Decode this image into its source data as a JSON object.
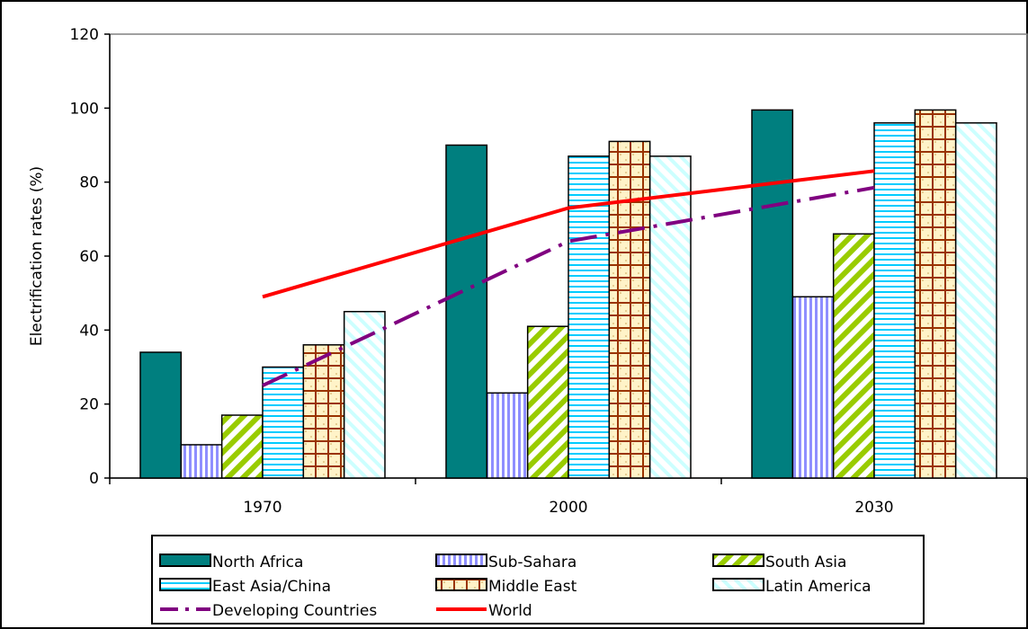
{
  "chart_data": {
    "type": "bar",
    "title": "",
    "xlabel": "",
    "ylabel": "Electrification rates (%)",
    "categories": [
      "1970",
      "2000",
      "2030"
    ],
    "ylim": [
      0,
      120
    ],
    "yticks": [
      0,
      20,
      40,
      60,
      80,
      100,
      120
    ],
    "grid": false,
    "legend_position": "bottom",
    "series": [
      {
        "name": "North Africa",
        "kind": "bar",
        "values": [
          34,
          90,
          99.5
        ],
        "color": "#007f7f",
        "pattern": "solid"
      },
      {
        "name": "Sub-Sahara",
        "kind": "bar",
        "values": [
          9,
          23,
          49
        ],
        "color": "#8f8fff",
        "pattern": "vertical"
      },
      {
        "name": "South Asia",
        "kind": "bar",
        "values": [
          17,
          41,
          66
        ],
        "color": "#99cc00",
        "pattern": "diagonal"
      },
      {
        "name": "East Asia/China",
        "kind": "bar",
        "values": [
          30,
          87,
          96
        ],
        "color": "#00ccff",
        "pattern": "horizontal"
      },
      {
        "name": "Middle East",
        "kind": "bar",
        "values": [
          36,
          91,
          99.5
        ],
        "color": "#993300",
        "pattern": "grid"
      },
      {
        "name": "Latin America",
        "kind": "bar",
        "values": [
          45,
          87,
          96
        ],
        "color": "#ccffff",
        "pattern": "lightdiagonal"
      },
      {
        "name": "Developing Countries",
        "kind": "line",
        "values": [
          25,
          64,
          78.5
        ],
        "color": "#800080",
        "dash": "dashdot"
      },
      {
        "name": "World",
        "kind": "line",
        "values": [
          49,
          73,
          83
        ],
        "color": "#ff0000",
        "dash": "solid"
      }
    ]
  }
}
